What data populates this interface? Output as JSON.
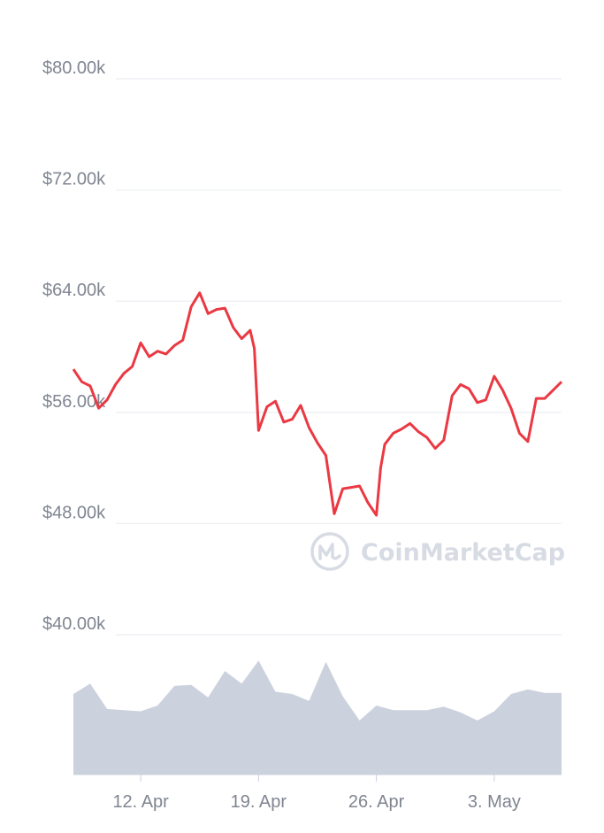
{
  "chart_data": {
    "type": "line",
    "currency_unit": "k USD",
    "price_axis": {
      "ticks": [
        80000,
        72000,
        64000,
        56000,
        48000,
        40000
      ],
      "tick_labels": [
        "$80.00k",
        "$72.00k",
        "$64.00k",
        "$56.00k",
        "$48.00k",
        "$40.00k"
      ],
      "ylim": [
        40000,
        80000
      ]
    },
    "x_axis": {
      "tick_labels": [
        "12. Apr",
        "19. Apr",
        "26. Apr",
        "3. May"
      ],
      "tick_dates": [
        "2021-04-12",
        "2021-04-19",
        "2021-04-26",
        "2021-05-03"
      ],
      "range": [
        "2021-04-08",
        "2021-05-07"
      ]
    },
    "series": [
      {
        "role": "price",
        "color": "#ea3943",
        "points": [
          [
            "2021-04-08",
            59100
          ],
          [
            "2021-04-08T12:00",
            58200
          ],
          [
            "2021-04-09",
            57900
          ],
          [
            "2021-04-09T12:00",
            56300
          ],
          [
            "2021-04-10",
            56900
          ],
          [
            "2021-04-10T12:00",
            58000
          ],
          [
            "2021-04-11",
            58800
          ],
          [
            "2021-04-11T12:00",
            59300
          ],
          [
            "2021-04-12",
            61000
          ],
          [
            "2021-04-12T12:00",
            60000
          ],
          [
            "2021-04-13",
            60400
          ],
          [
            "2021-04-13T12:00",
            60200
          ],
          [
            "2021-04-14",
            60800
          ],
          [
            "2021-04-14T12:00",
            61200
          ],
          [
            "2021-04-15",
            63600
          ],
          [
            "2021-04-15T12:00",
            64600
          ],
          [
            "2021-04-16",
            63100
          ],
          [
            "2021-04-16T12:00",
            63400
          ],
          [
            "2021-04-17",
            63500
          ],
          [
            "2021-04-17T12:00",
            62100
          ],
          [
            "2021-04-18",
            61300
          ],
          [
            "2021-04-18T12:00",
            61900
          ],
          [
            "2021-04-18T18:00",
            60600
          ],
          [
            "2021-04-19",
            54700
          ],
          [
            "2021-04-19T12:00",
            56400
          ],
          [
            "2021-04-20",
            56800
          ],
          [
            "2021-04-20T12:00",
            55300
          ],
          [
            "2021-04-21",
            55500
          ],
          [
            "2021-04-21T12:00",
            56500
          ],
          [
            "2021-04-22",
            54900
          ],
          [
            "2021-04-22T12:00",
            53800
          ],
          [
            "2021-04-23",
            52900
          ],
          [
            "2021-04-23T12:00",
            48700
          ],
          [
            "2021-04-24",
            50500
          ],
          [
            "2021-04-24T12:00",
            50600
          ],
          [
            "2021-04-25",
            50700
          ],
          [
            "2021-04-25T12:00",
            49500
          ],
          [
            "2021-04-26",
            48600
          ],
          [
            "2021-04-26T06:00",
            52000
          ],
          [
            "2021-04-26T12:00",
            53700
          ],
          [
            "2021-04-27",
            54500
          ],
          [
            "2021-04-27T12:00",
            54800
          ],
          [
            "2021-04-28",
            55200
          ],
          [
            "2021-04-28T12:00",
            54600
          ],
          [
            "2021-04-29",
            54200
          ],
          [
            "2021-04-29T12:00",
            53400
          ],
          [
            "2021-04-30",
            54000
          ],
          [
            "2021-04-30T12:00",
            57200
          ],
          [
            "2021-05-01",
            58000
          ],
          [
            "2021-05-01T12:00",
            57700
          ],
          [
            "2021-05-02",
            56700
          ],
          [
            "2021-05-02T12:00",
            56900
          ],
          [
            "2021-05-03",
            58600
          ],
          [
            "2021-05-03T12:00",
            57600
          ],
          [
            "2021-05-04",
            56300
          ],
          [
            "2021-05-04T12:00",
            54500
          ],
          [
            "2021-05-05",
            53900
          ],
          [
            "2021-05-05T12:00",
            57000
          ],
          [
            "2021-05-06",
            57000
          ],
          [
            "2021-05-06T12:00",
            57600
          ],
          [
            "2021-05-07",
            58200
          ]
        ]
      },
      {
        "role": "volume",
        "color": "#ccd1de",
        "relative_volume": [
          [
            "2021-04-08",
            0.7
          ],
          [
            "2021-04-09",
            0.79
          ],
          [
            "2021-04-10",
            0.57
          ],
          [
            "2021-04-11",
            0.56
          ],
          [
            "2021-04-12",
            0.55
          ],
          [
            "2021-04-13",
            0.6
          ],
          [
            "2021-04-14",
            0.77
          ],
          [
            "2021-04-15",
            0.78
          ],
          [
            "2021-04-16",
            0.67
          ],
          [
            "2021-04-17",
            0.9
          ],
          [
            "2021-04-18",
            0.79
          ],
          [
            "2021-04-19",
            0.99
          ],
          [
            "2021-04-20",
            0.72
          ],
          [
            "2021-04-21",
            0.7
          ],
          [
            "2021-04-22",
            0.64
          ],
          [
            "2021-04-23",
            0.98
          ],
          [
            "2021-04-24",
            0.68
          ],
          [
            "2021-04-25",
            0.47
          ],
          [
            "2021-04-26",
            0.6
          ],
          [
            "2021-04-27",
            0.56
          ],
          [
            "2021-04-28",
            0.56
          ],
          [
            "2021-04-29",
            0.56
          ],
          [
            "2021-04-30",
            0.59
          ],
          [
            "2021-05-01",
            0.54
          ],
          [
            "2021-05-02",
            0.47
          ],
          [
            "2021-05-03",
            0.55
          ],
          [
            "2021-05-04",
            0.7
          ],
          [
            "2021-05-05",
            0.74
          ],
          [
            "2021-05-06",
            0.71
          ],
          [
            "2021-05-07",
            0.71
          ]
        ]
      }
    ],
    "grid": true,
    "watermark": "CoinMarketCap"
  }
}
